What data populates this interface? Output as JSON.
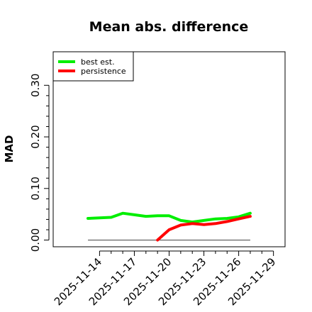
{
  "chart_data": {
    "type": "line",
    "title": "Mean abs. difference",
    "xlabel": "",
    "ylabel": "MAD",
    "x": [
      "2025-11-13",
      "2025-11-14",
      "2025-11-15",
      "2025-11-16",
      "2025-11-17",
      "2025-11-18",
      "2025-11-19",
      "2025-11-20",
      "2025-11-21",
      "2025-11-22",
      "2025-11-23",
      "2025-11-24",
      "2025-11-25",
      "2025-11-26",
      "2025-11-27"
    ],
    "xticks": [
      "2025-11-14",
      "2025-11-17",
      "2025-11-20",
      "2025-11-23",
      "2025-11-26",
      "2025-11-29"
    ],
    "xlim": [
      "2025-11-10",
      "2025-11-30"
    ],
    "yticks": [
      0.0,
      0.1,
      0.2,
      0.3
    ],
    "ytick_labels": [
      "0.00",
      "0.10",
      "0.20",
      "0.30"
    ],
    "ylim": [
      -0.013,
      0.365
    ],
    "grid": false,
    "legend": "top-left",
    "reference_line": 0.0,
    "series": [
      {
        "name": "best est.",
        "color": "#00ee00",
        "values": [
          0.042,
          0.043,
          0.044,
          0.052,
          0.049,
          0.046,
          0.047,
          0.047,
          0.038,
          0.035,
          0.038,
          0.041,
          0.042,
          0.045,
          0.052
        ]
      },
      {
        "name": "persistence",
        "color": "#ff0000",
        "values": [
          null,
          null,
          null,
          null,
          null,
          null,
          0.0,
          0.02,
          0.029,
          0.032,
          0.03,
          0.032,
          0.036,
          0.041,
          0.046
        ]
      }
    ]
  }
}
